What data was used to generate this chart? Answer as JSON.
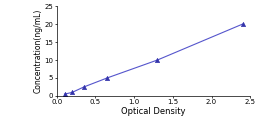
{
  "x_data": [
    0.1,
    0.2,
    0.35,
    0.65,
    1.3,
    2.4
  ],
  "y_data": [
    0.5,
    1.0,
    2.5,
    5.0,
    10.0,
    20.0
  ],
  "line_color": "#5555cc",
  "marker_color": "#3333aa",
  "marker": "^",
  "marker_size": 3,
  "xlabel": "Optical Density",
  "ylabel": "Concentration(ng/mL)",
  "xlim": [
    0,
    2.5
  ],
  "ylim": [
    0,
    25
  ],
  "xticks": [
    0,
    0.5,
    1,
    1.5,
    2,
    2.5
  ],
  "yticks": [
    0,
    5,
    10,
    15,
    20,
    25
  ],
  "xlabel_fontsize": 6,
  "ylabel_fontsize": 5.5,
  "tick_fontsize": 5,
  "background_color": "#ffffff"
}
